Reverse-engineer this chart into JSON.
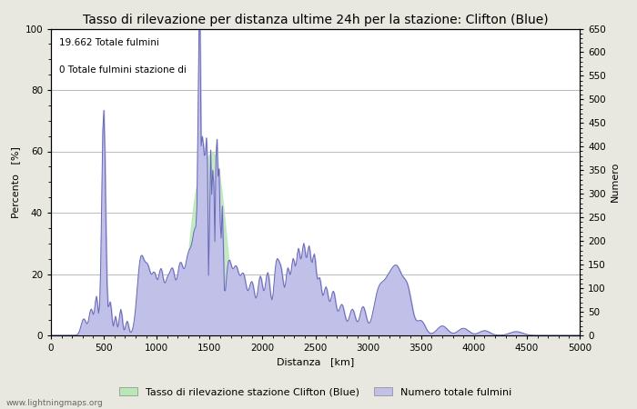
{
  "title": "Tasso di rilevazione per distanza ultime 24h per la stazione: Clifton (Blue)",
  "xlabel": "Distanza   [km]",
  "ylabel_left": "Percento   [%]",
  "ylabel_right": "Numero",
  "annotation_line1": "19.662 Totale fulmini",
  "annotation_line2": "0 Totale fulmini stazione di",
  "xlim": [
    0,
    5000
  ],
  "ylim_left": [
    0,
    100
  ],
  "ylim_right": [
    0,
    650
  ],
  "xticks": [
    0,
    500,
    1000,
    1500,
    2000,
    2500,
    3000,
    3500,
    4000,
    4500,
    5000
  ],
  "yticks_left": [
    0,
    20,
    40,
    60,
    80,
    100
  ],
  "yticks_right": [
    0,
    50,
    100,
    150,
    200,
    250,
    300,
    350,
    400,
    450,
    500,
    550,
    600,
    650
  ],
  "legend_label_green": "Tasso di rilevazione stazione Clifton (Blue)",
  "legend_label_blue": "Numero totale fulmini",
  "watermark": "www.lightningmaps.org",
  "bg_color": "#e8e8e0",
  "plot_bg_color": "#ffffff",
  "grid_color": "#b0b0b0",
  "line_color": "#6868b8",
  "fill_blue_color": "#c0c0e8",
  "fill_green_color": "#b8e8b8",
  "title_fontsize": 10,
  "axis_label_fontsize": 8,
  "tick_fontsize": 7.5,
  "annotation_fontsize": 7.5,
  "legend_fontsize": 8
}
